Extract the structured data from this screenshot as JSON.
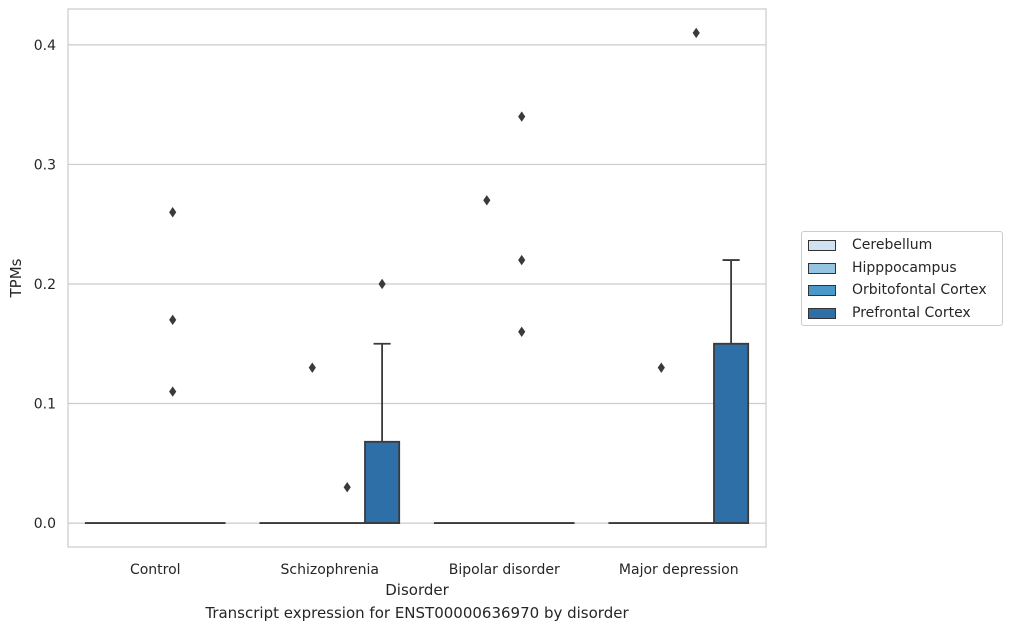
{
  "chart_data": {
    "type": "box",
    "caption": "Transcript expression for ENST00000636970 by disorder",
    "xlabel": "Disorder",
    "ylabel": "TPMs",
    "ylim": [
      -0.02,
      0.43
    ],
    "yticks": [
      0.0,
      0.1,
      0.2,
      0.3,
      0.4
    ],
    "ytick_labels": [
      "0.0",
      "0.1",
      "0.2",
      "0.3",
      "0.4"
    ],
    "grid": "horizontal",
    "legend_position": "right",
    "categories": [
      "Control",
      "Schizophrenia",
      "Bipolar disorder",
      "Major depression"
    ],
    "series": [
      {
        "name": "Cerebellum",
        "color": "#d0e1f2",
        "boxes": [
          {
            "q1": 0,
            "median": 0,
            "q3": 0,
            "whisker_low": 0,
            "whisker_high": 0,
            "outliers": []
          },
          {
            "q1": 0,
            "median": 0,
            "q3": 0,
            "whisker_low": 0,
            "whisker_high": 0,
            "outliers": []
          },
          {
            "q1": 0,
            "median": 0,
            "q3": 0,
            "whisker_low": 0,
            "whisker_high": 0,
            "outliers": []
          },
          {
            "q1": 0,
            "median": 0,
            "q3": 0,
            "whisker_low": 0,
            "whisker_high": 0,
            "outliers": []
          }
        ]
      },
      {
        "name": "Hipppocampus",
        "color": "#94c4df",
        "boxes": [
          {
            "q1": 0,
            "median": 0,
            "q3": 0,
            "whisker_low": 0,
            "whisker_high": 0,
            "outliers": []
          },
          {
            "q1": 0,
            "median": 0,
            "q3": 0,
            "whisker_low": 0,
            "whisker_high": 0,
            "outliers": [
              0.13
            ]
          },
          {
            "q1": 0,
            "median": 0,
            "q3": 0,
            "whisker_low": 0,
            "whisker_high": 0,
            "outliers": [
              0.27
            ]
          },
          {
            "q1": 0,
            "median": 0,
            "q3": 0,
            "whisker_low": 0,
            "whisker_high": 0,
            "outliers": [
              0.13
            ]
          }
        ]
      },
      {
        "name": "Orbitofontal Cortex",
        "color": "#4a98c9",
        "boxes": [
          {
            "q1": 0,
            "median": 0,
            "q3": 0,
            "whisker_low": 0,
            "whisker_high": 0,
            "outliers": [
              0.26,
              0.17,
              0.11
            ]
          },
          {
            "q1": 0,
            "median": 0,
            "q3": 0,
            "whisker_low": 0,
            "whisker_high": 0,
            "outliers": [
              0.03
            ]
          },
          {
            "q1": 0,
            "median": 0,
            "q3": 0,
            "whisker_low": 0,
            "whisker_high": 0,
            "outliers": [
              0.34,
              0.22,
              0.16
            ]
          },
          {
            "q1": 0,
            "median": 0,
            "q3": 0,
            "whisker_low": 0,
            "whisker_high": 0,
            "outliers": [
              0.41
            ]
          }
        ]
      },
      {
        "name": "Prefrontal Cortex",
        "color": "#2e6fa8",
        "boxes": [
          {
            "q1": 0,
            "median": 0,
            "q3": 0,
            "whisker_low": 0,
            "whisker_high": 0,
            "outliers": []
          },
          {
            "q1": 0,
            "median": 0,
            "q3": 0.068,
            "whisker_low": 0,
            "whisker_high": 0.15,
            "outliers": [
              0.2
            ]
          },
          {
            "q1": 0,
            "median": 0,
            "q3": 0,
            "whisker_low": 0,
            "whisker_high": 0,
            "outliers": []
          },
          {
            "q1": 0,
            "median": 0,
            "q3": 0.15,
            "whisker_low": 0,
            "whisker_high": 0.22,
            "outliers": []
          }
        ]
      }
    ]
  }
}
